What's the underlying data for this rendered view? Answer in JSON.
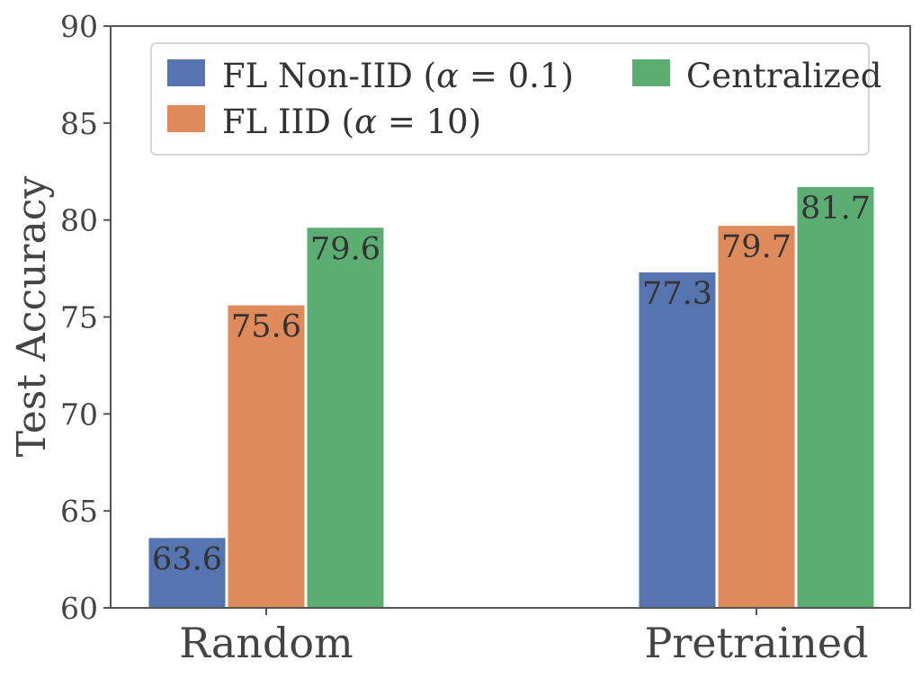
{
  "colors": {
    "series": [
      "#5574b0",
      "#df8a5a",
      "#5bad72"
    ],
    "axis": "#555555",
    "text": "#444444"
  },
  "chart_data": {
    "type": "bar",
    "title": "",
    "xlabel": "",
    "ylabel": "Test Accuracy",
    "ylim": [
      60,
      90
    ],
    "yticks": [
      60,
      65,
      70,
      75,
      80,
      85,
      90
    ],
    "categories": [
      "Random",
      "Pretrained"
    ],
    "series": [
      {
        "name": "FL Non-IID (α = 0.1)",
        "name_prefix": "FL Non-IID (",
        "name_var": "α",
        "name_suffix": " = 0.1)",
        "values": [
          63.6,
          77.3
        ],
        "labels": [
          "63.6",
          "77.3"
        ]
      },
      {
        "name": "FL IID (α = 10)",
        "name_prefix": "FL IID (",
        "name_var": "α",
        "name_suffix": " = 10)",
        "values": [
          75.6,
          79.7
        ],
        "labels": [
          "75.6",
          "79.7"
        ]
      },
      {
        "name": "Centralized",
        "name_prefix": "Centralized",
        "name_var": "",
        "name_suffix": "",
        "values": [
          79.6,
          81.7
        ],
        "labels": [
          "79.6",
          "81.7"
        ]
      }
    ],
    "grid": false,
    "legend": {
      "placement": "top",
      "columns": 2
    }
  }
}
